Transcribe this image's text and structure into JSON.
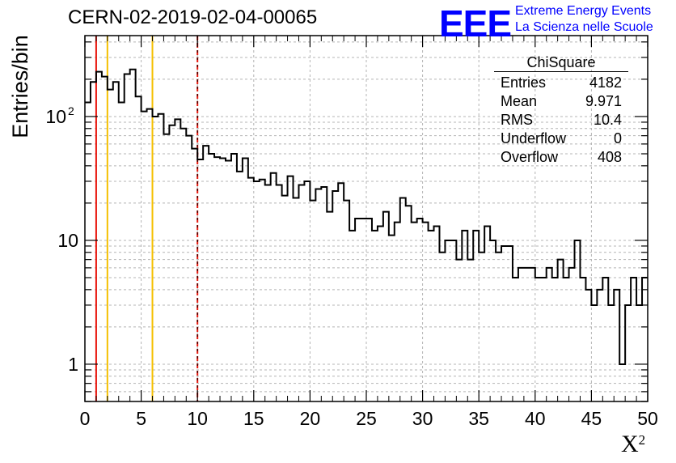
{
  "header": {
    "title": "CERN-02-2019-02-04-00065"
  },
  "logo": {
    "mark": "EEE",
    "line1": "Extreme Energy Events",
    "line2": "La Scienza nelle Scuole"
  },
  "stats": {
    "title": "ChiSquare",
    "rows": [
      {
        "label": "Entries",
        "value": "4182"
      },
      {
        "label": "Mean",
        "value": "9.971"
      },
      {
        "label": "RMS",
        "value": "10.4"
      },
      {
        "label": "Underflow",
        "value": "0"
      },
      {
        "label": "Overflow",
        "value": "408"
      }
    ]
  },
  "chart_data": {
    "type": "bar",
    "title": "CERN-02-2019-02-04-00065",
    "xlabel": "X",
    "xlabel_superscript": "2",
    "ylabel": "Entries/bin",
    "xlim": [
      0,
      50
    ],
    "ylim": [
      0.5,
      450
    ],
    "y_scale": "log",
    "grid": true,
    "x_ticks": [
      "0",
      "5",
      "10",
      "15",
      "20",
      "25",
      "30",
      "35",
      "40",
      "45",
      "50"
    ],
    "y_ticks": [
      {
        "value": 1,
        "label": "1"
      },
      {
        "value": 10,
        "label": "10"
      },
      {
        "value": 100,
        "label": "10",
        "sup": "2"
      }
    ],
    "bin_width": 0.5,
    "bin_start": 0,
    "values": [
      130,
      190,
      230,
      210,
      165,
      190,
      130,
      220,
      240,
      145,
      110,
      115,
      100,
      105,
      72,
      85,
      95,
      80,
      70,
      55,
      45,
      58,
      50,
      47,
      46,
      44,
      50,
      36,
      46,
      32,
      30,
      31,
      28,
      35,
      28,
      23,
      33,
      22,
      28,
      30,
      21,
      26,
      27,
      17,
      25,
      29,
      21,
      12,
      15,
      15,
      15,
      12,
      13,
      17,
      11,
      14,
      22,
      19,
      14,
      15,
      14,
      12,
      13,
      8,
      10,
      10,
      7,
      12,
      7,
      12,
      8,
      13,
      10,
      8,
      9,
      9,
      5,
      6,
      6,
      6,
      5,
      5,
      6,
      5,
      7,
      5,
      6,
      10,
      5,
      4,
      3,
      4,
      5,
      3,
      4,
      1,
      3,
      5,
      3,
      5
    ],
    "color": "#000000",
    "vertical_lines": [
      {
        "x": 1,
        "color": "#e8150c",
        "style": "solid"
      },
      {
        "x": 2,
        "color": "#f5c000",
        "style": "solid"
      },
      {
        "x": 6,
        "color": "#f5c000",
        "style": "solid"
      },
      {
        "x": 10,
        "color": "#e8150c",
        "style": "dashed"
      }
    ]
  }
}
